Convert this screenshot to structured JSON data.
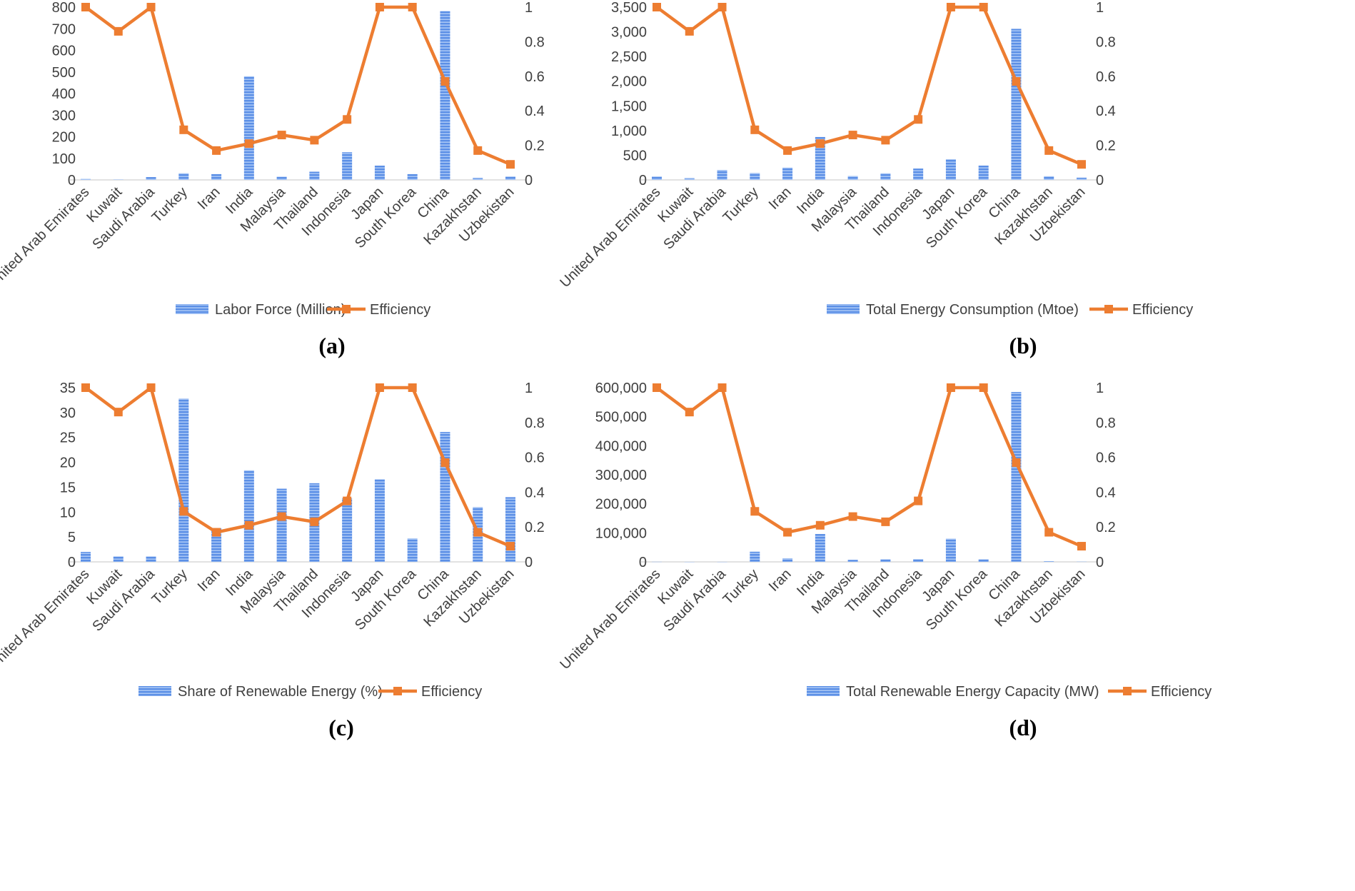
{
  "colors": {
    "bar": "#5b8fe6",
    "bar_stripe": "#a8c6f5",
    "line": "#ed7d31",
    "axis": "#d9d9d9",
    "text": "#404040"
  },
  "chart_data": [
    {
      "type": "bar",
      "panel_label": "(a)",
      "categories": [
        "United Arab Emirates",
        "Kuwait",
        "Saudi Arabia",
        "Turkey",
        "Iran",
        "India",
        "Malaysia",
        "Thailand",
        "Indonesia",
        "Japan",
        "South Korea",
        "China",
        "Kazakhstan",
        "Uzbekistan"
      ],
      "series": [
        {
          "name": "Labor Force (Million)",
          "type": "bar",
          "axis": "left",
          "values": [
            5,
            2,
            13,
            31,
            27,
            480,
            15,
            38,
            128,
            66,
            27,
            782,
            9,
            16
          ]
        },
        {
          "name": "Efficiency",
          "type": "line",
          "axis": "right",
          "values": [
            1,
            0.86,
            1,
            0.29,
            0.17,
            0.21,
            0.26,
            0.23,
            0.35,
            1,
            1,
            0.57,
            0.17,
            0.09
          ]
        }
      ],
      "y_left": {
        "min": 0,
        "max": 800,
        "ticks": [
          0,
          100,
          200,
          300,
          400,
          500,
          600,
          700,
          800
        ],
        "tick_labels": [
          "0",
          "100",
          "200",
          "300",
          "400",
          "500",
          "600",
          "700",
          "800"
        ]
      },
      "y_right": {
        "min": 0,
        "max": 1,
        "ticks": [
          0,
          0.2,
          0.4,
          0.6,
          0.8,
          1
        ],
        "tick_labels": [
          "0",
          "0.2",
          "0.4",
          "0.6",
          "0.8",
          "1"
        ]
      },
      "legend": "bottom",
      "grid": false
    },
    {
      "type": "bar",
      "panel_label": "(b)",
      "categories": [
        "United Arab Emirates",
        "Kuwait",
        "Saudi Arabia",
        "Turkey",
        "Iran",
        "India",
        "Malaysia",
        "Thailand",
        "Indonesia",
        "Japan",
        "South Korea",
        "China",
        "Kazakhstan",
        "Uzbekistan"
      ],
      "series": [
        {
          "name": "Total Energy Consumption (Mtoe)",
          "type": "bar",
          "axis": "left",
          "values": [
            70,
            35,
            200,
            140,
            250,
            870,
            80,
            135,
            230,
            420,
            290,
            3060,
            75,
            45
          ]
        },
        {
          "name": "Efficiency",
          "type": "line",
          "axis": "right",
          "values": [
            1,
            0.86,
            1,
            0.29,
            0.17,
            0.21,
            0.26,
            0.23,
            0.35,
            1,
            1,
            0.57,
            0.17,
            0.09
          ]
        }
      ],
      "y_left": {
        "min": 0,
        "max": 3500,
        "ticks": [
          0,
          500,
          1000,
          1500,
          2000,
          2500,
          3000,
          3500
        ],
        "tick_labels": [
          "0",
          "500",
          "1,000",
          "1,500",
          "2,000",
          "2,500",
          "3,000",
          "3,500"
        ]
      },
      "y_right": {
        "min": 0,
        "max": 1,
        "ticks": [
          0,
          0.2,
          0.4,
          0.6,
          0.8,
          1
        ],
        "tick_labels": [
          "0",
          "0.2",
          "0.4",
          "0.6",
          "0.8",
          "1"
        ]
      },
      "legend": "bottom",
      "grid": false
    },
    {
      "type": "bar",
      "panel_label": "(c)",
      "categories": [
        "United Arab Emirates",
        "Kuwait",
        "Saudi Arabia",
        "Turkey",
        "Iran",
        "India",
        "Malaysia",
        "Thailand",
        "Indonesia",
        "Japan",
        "South Korea",
        "China",
        "Kazakhstan",
        "Uzbekistan"
      ],
      "series": [
        {
          "name": "Share of Renewable Energy (%)",
          "type": "bar",
          "axis": "left",
          "values": [
            2,
            1.1,
            1.1,
            32.8,
            6.8,
            18.4,
            14.7,
            15.8,
            12.8,
            16.6,
            4.7,
            26.1,
            11,
            13
          ]
        },
        {
          "name": "Efficiency",
          "type": "line",
          "axis": "right",
          "values": [
            1,
            0.86,
            1,
            0.29,
            0.17,
            0.21,
            0.26,
            0.23,
            0.35,
            1,
            1,
            0.57,
            0.17,
            0.09
          ]
        }
      ],
      "y_left": {
        "min": 0,
        "max": 35,
        "ticks": [
          0,
          5,
          10,
          15,
          20,
          25,
          30,
          35
        ],
        "tick_labels": [
          "0",
          "5",
          "10",
          "15",
          "20",
          "25",
          "30",
          "35"
        ]
      },
      "y_right": {
        "min": 0,
        "max": 1,
        "ticks": [
          0,
          0.2,
          0.4,
          0.6,
          0.8,
          1
        ],
        "tick_labels": [
          "0",
          "0.2",
          "0.4",
          "0.6",
          "0.8",
          "1"
        ]
      },
      "legend": "bottom",
      "grid": false
    },
    {
      "type": "bar",
      "panel_label": "(d)",
      "categories": [
        "United Arab Emirates",
        "Kuwait",
        "Saudi Arabia",
        "Turkey",
        "Iran",
        "India",
        "Malaysia",
        "Thailand",
        "Indonesia",
        "Japan",
        "South Korea",
        "China",
        "Kazakhstan",
        "Uzbekistan"
      ],
      "series": [
        {
          "name": "Total Renewable Energy Capacity (MW)",
          "type": "bar",
          "axis": "left",
          "values": [
            500,
            100,
            200,
            35000,
            12000,
            96000,
            7000,
            9000,
            9500,
            80000,
            9000,
            585000,
            2500,
            1000
          ]
        },
        {
          "name": "Efficiency",
          "type": "line",
          "axis": "right",
          "values": [
            1,
            0.86,
            1,
            0.29,
            0.17,
            0.21,
            0.26,
            0.23,
            0.35,
            1,
            1,
            0.57,
            0.17,
            0.09
          ]
        }
      ],
      "y_left": {
        "min": 0,
        "max": 600000,
        "ticks": [
          0,
          100000,
          200000,
          300000,
          400000,
          500000,
          600000
        ],
        "tick_labels": [
          "0",
          "100,000",
          "200,000",
          "300,000",
          "400,000",
          "500,000",
          "600,000"
        ]
      },
      "y_right": {
        "min": 0,
        "max": 1,
        "ticks": [
          0,
          0.2,
          0.4,
          0.6,
          0.8,
          1
        ],
        "tick_labels": [
          "0",
          "0.2",
          "0.4",
          "0.6",
          "0.8",
          "1"
        ]
      },
      "legend": "bottom",
      "grid": false
    }
  ]
}
